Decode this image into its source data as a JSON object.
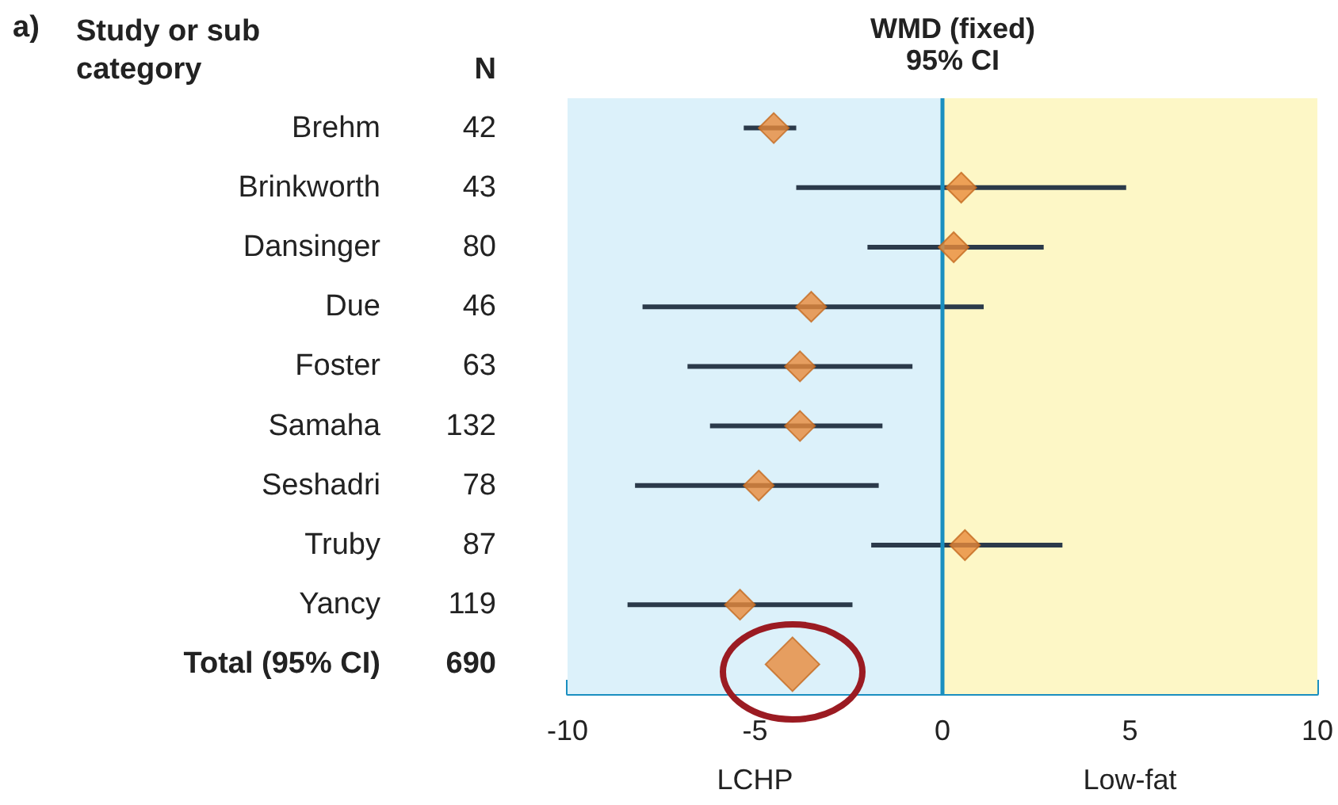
{
  "chart_data": {
    "type": "scatter",
    "orientation": "horizontal",
    "title": "WMD (fixed)",
    "subtitle": "95% CI",
    "categories": [
      "Brehm",
      "Brinkworth",
      "Dansinger",
      "Due",
      "Foster",
      "Samaha",
      "Seshadri",
      "Truby",
      "Yancy",
      "Total (95% CI)"
    ],
    "series": [
      {
        "color": "#e8893a",
        "values": [
          -4.5,
          0.5,
          0.3,
          -3.5,
          -3.8,
          -3.8,
          -4.9,
          0.6,
          -5.4,
          null
        ],
        "errors": [
          [
            -5.3,
            -3.9
          ],
          [
            -3.9,
            4.9
          ],
          [
            -2.0,
            2.7
          ],
          [
            -8.0,
            1.1
          ],
          [
            -6.8,
            -0.8
          ],
          [
            -6.2,
            -1.6
          ],
          [
            -8.2,
            -1.7
          ],
          [
            -1.9,
            3.2
          ],
          [
            -8.4,
            -2.4
          ],
          null
        ]
      },
      {
        "color": "#e8893a",
        "values": [
          null,
          null,
          null,
          null,
          null,
          null,
          null,
          null,
          null,
          -4.0
        ]
      }
    ],
    "marker": "diamond",
    "xlim": [
      -10,
      10
    ],
    "xticks": [
      -10,
      -5,
      0,
      5,
      10
    ],
    "grid": false,
    "ref_lines": [
      {
        "axis": "x",
        "value": 0,
        "color": "#1a8fc0"
      }
    ],
    "bands": [
      {
        "axis": "x",
        "from": -10,
        "to": 0,
        "color": "#dcf1fa"
      },
      {
        "axis": "x",
        "from": 0,
        "to": 10,
        "color": "#fdf7c6"
      }
    ],
    "annotations": [
      "a)",
      "Study or sub category",
      "N",
      "42",
      "43",
      "80",
      "46",
      "63",
      "132",
      "78",
      "87",
      "119",
      "690",
      "LCHP",
      "Low-fat"
    ]
  }
}
